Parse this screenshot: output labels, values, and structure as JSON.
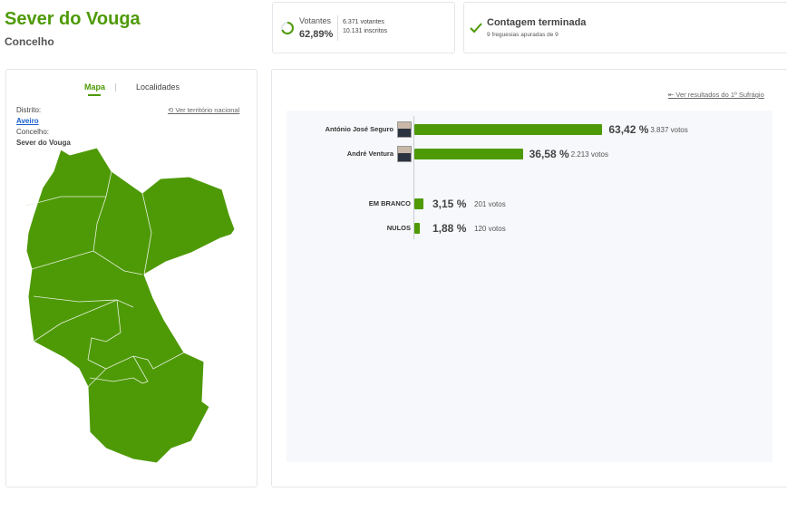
{
  "header": {
    "title": "Sever do Vouga",
    "subtitle": "Concelho"
  },
  "turnout": {
    "label": "Votantes",
    "percent": "62,89%",
    "voters": "6.371 votantes",
    "registered": "10.131 inscritos"
  },
  "status": {
    "title": "Contagem terminada",
    "detail": "9 freguesias apuradas de 9"
  },
  "sidebar": {
    "tabs": [
      "Mapa",
      "Localidades"
    ],
    "link": "Ver território nacional",
    "district_label": "Distrito:",
    "district": "Aveiro",
    "council_label": "Concelho:",
    "council": "Sever do Vouga"
  },
  "results": {
    "link": "Ver resultados do 1º Sufrágio",
    "candidates": [
      {
        "name": "António José Seguro",
        "value": 63.42,
        "value_label": "63,42 %",
        "votes": "3.837 votos"
      },
      {
        "name": "André Ventura",
        "value": 36.58,
        "value_label": "36,58 %",
        "votes": "2.213 votos"
      }
    ],
    "other": [
      {
        "name": "EM BRANCO",
        "value": 3.15,
        "value_label": "3,15 %",
        "votes": "201 votos"
      },
      {
        "name": "NULOS",
        "value": 1.88,
        "value_label": "1,88 %",
        "votes": "120 votos"
      }
    ]
  }
}
